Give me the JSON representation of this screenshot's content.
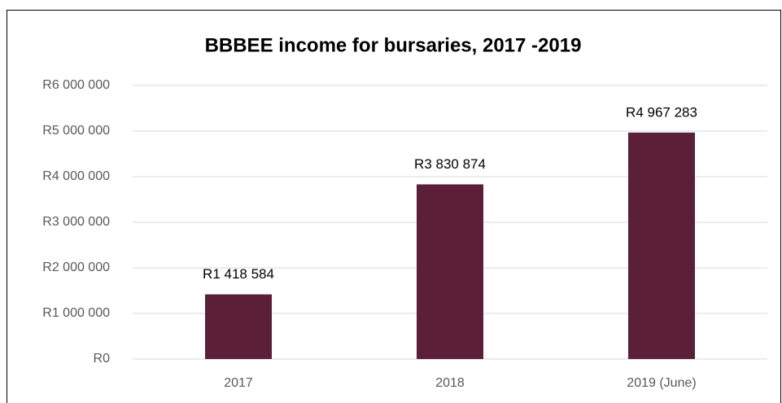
{
  "chart_data": {
    "type": "bar",
    "title": "BBBEE income for bursaries, 2017 -2019",
    "categories": [
      "2017",
      "2018",
      "2019 (June)"
    ],
    "values": [
      1418584,
      3830874,
      4967283
    ],
    "value_labels": [
      "R1 418 584",
      "R3 830 874",
      "R4 967 283"
    ],
    "color": "#5c1f38",
    "ylim": [
      0,
      6000000
    ],
    "yticks": [
      {
        "value": 0,
        "label": "R0"
      },
      {
        "value": 1000000,
        "label": "R1 000 000"
      },
      {
        "value": 2000000,
        "label": "R2 000 000"
      },
      {
        "value": 3000000,
        "label": "R3 000 000"
      },
      {
        "value": 4000000,
        "label": "R4 000 000"
      },
      {
        "value": 5000000,
        "label": "R5 000 000"
      },
      {
        "value": 6000000,
        "label": "R6 000 000"
      }
    ],
    "grid": true
  }
}
